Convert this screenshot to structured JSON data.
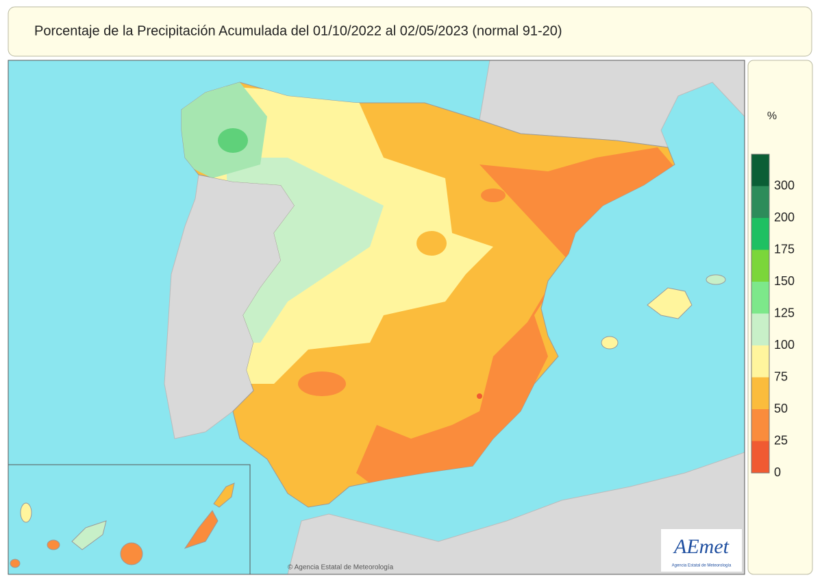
{
  "header": {
    "title": "Porcentaje de la Precipitación Acumulada del 01/10/2022 al 02/05/2023 (normal 91-20)"
  },
  "legend": {
    "unit": "%",
    "colors": [
      "#0b5e35",
      "#2d8c5a",
      "#1fc062",
      "#7bd63a",
      "#7de88a",
      "#c8f0c8",
      "#fff59d",
      "#fbbc3c",
      "#fa8c3c",
      "#f05a32"
    ],
    "labels": [
      300,
      200,
      175,
      150,
      125,
      100,
      75,
      50,
      25,
      0
    ]
  },
  "map": {
    "copyright": "© Agencia Estatal de Meteorología",
    "logo": {
      "name": "AEmet",
      "subtitle": "Agencia Estatal de Meteorología"
    }
  }
}
